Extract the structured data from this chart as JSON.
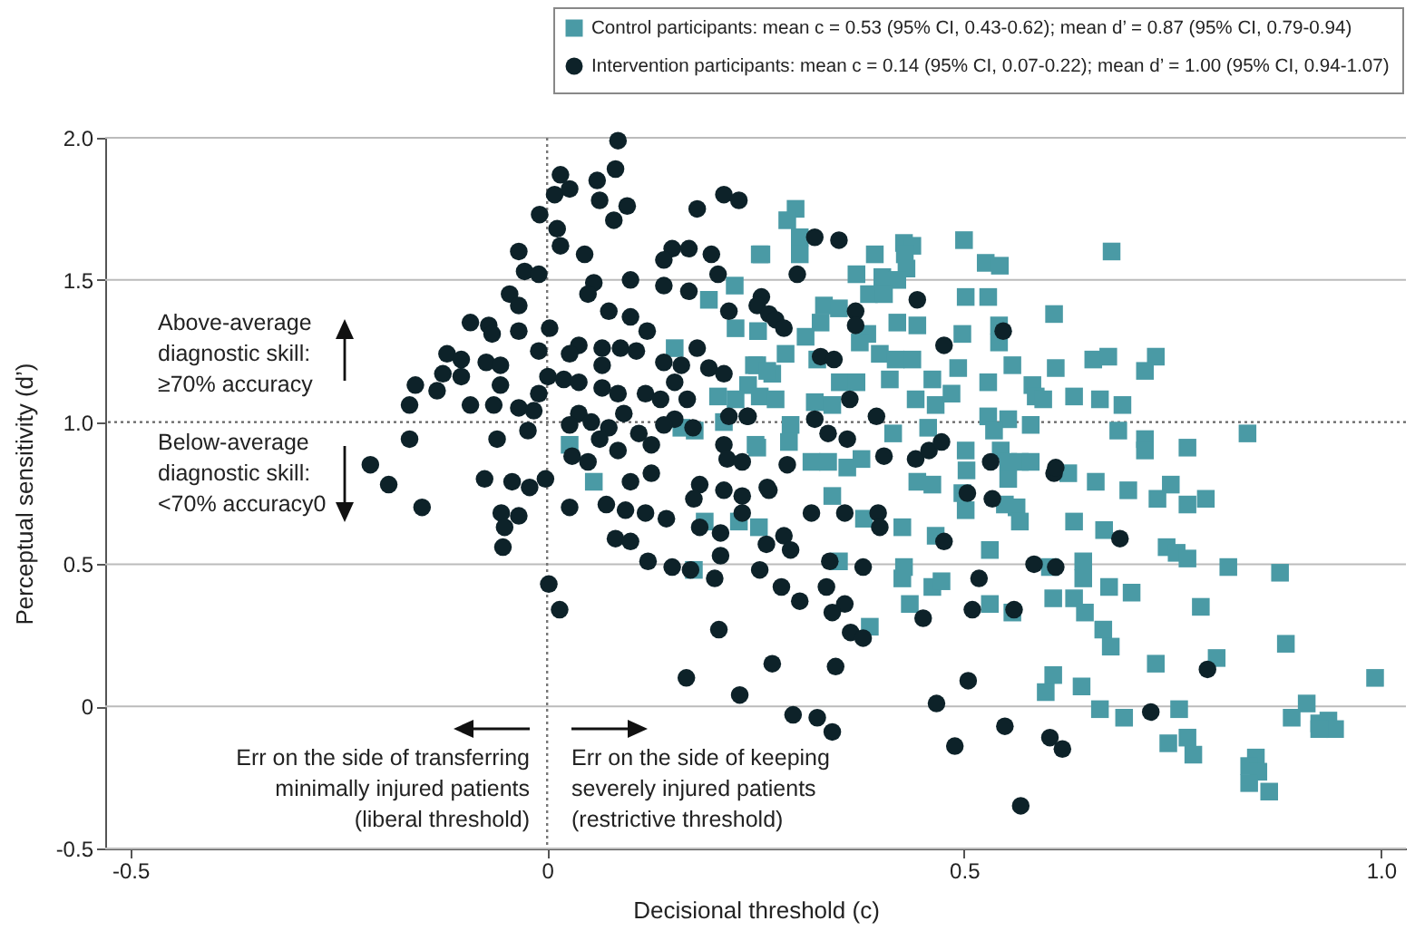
{
  "chart_data": {
    "type": "scatter",
    "xlabel": "Decisional threshold (c)",
    "ylabel": "Perceptual sensitivity (d’)",
    "xlim": [
      -0.53,
      1.03
    ],
    "ylim": [
      -0.5,
      2.0
    ],
    "xticks": [
      -0.5,
      0,
      0.5,
      {
        "value": 1,
        "label": "1.0"
      }
    ],
    "yticks": [
      -0.5,
      0,
      0.5,
      {
        "value": 1,
        "label": "1.0"
      },
      1.5,
      {
        "value": 2,
        "label": "2.0"
      }
    ],
    "grid": "y",
    "legend": "top right",
    "ref_lines": [
      {
        "axis": "x",
        "value": 0,
        "color": "#777777",
        "line_style": "dotted"
      },
      {
        "axis": "y",
        "value": 1,
        "color": "#666666",
        "line_style": "dotted"
      }
    ],
    "annotations": [
      "Above-average diagnostic skill: ≥70% accuracy",
      "Below-average diagnostic skill: <70% accuracy0",
      "Err on the side of transferring minimally injured patients (liberal threshold)",
      "Err on the side of keeping severely injured patients (restrictive threshold)"
    ],
    "series": [
      {
        "name": "Control participants: mean c = 0.53 (95% CI, 0.43-0.62); mean d’ = 0.87 (95% CI, 0.79-0.94)",
        "color": "#4a9aa5",
        "marker": "square",
        "x": [
          0.255,
          0.225,
          0.194,
          0.226,
          0.253,
          0.153,
          0.252,
          0.27,
          0.241,
          0.205,
          0.226,
          0.255,
          0.212,
          0.161,
          0.177,
          0.027,
          0.25,
          0.056,
          0.189,
          0.23,
          0.254,
          0.176,
          0.298,
          0.288,
          0.303,
          0.257,
          0.303,
          0.428,
          0.438,
          0.429,
          0.431,
          0.393,
          0.5,
          0.526,
          0.543,
          0.677,
          0.371,
          0.402,
          0.42,
          0.386,
          0.404,
          0.502,
          0.529,
          0.608,
          0.332,
          0.35,
          0.328,
          0.42,
          0.444,
          0.542,
          0.542,
          0.498,
          0.384,
          0.375,
          0.31,
          0.286,
          0.399,
          0.418,
          0.438,
          0.324,
          0.493,
          0.558,
          0.61,
          0.655,
          0.673,
          0.73,
          0.717,
          0.248,
          0.264,
          0.411,
          0.462,
          0.529,
          0.351,
          0.371,
          0.274,
          0.321,
          0.342,
          0.442,
          0.466,
          0.485,
          0.582,
          0.586,
          0.595,
          0.632,
          0.663,
          0.69,
          0.529,
          0.553,
          0.58,
          0.536,
          0.457,
          0.415,
          0.292,
          0.29,
          0.252,
          0.685,
          0.717,
          0.717,
          0.768,
          0.84,
          0.502,
          0.544,
          0.553,
          0.567,
          0.58,
          0.503,
          0.317,
          0.337,
          0.36,
          0.377,
          0.625,
          0.658,
          0.553,
          0.697,
          0.748,
          0.342,
          0.444,
          0.462,
          0.498,
          0.502,
          0.549,
          0.563,
          0.567,
          0.632,
          0.732,
          0.768,
          0.79,
          0.38,
          0.426,
          0.466,
          0.531,
          0.668,
          0.743,
          0.755,
          0.768,
          0.817,
          0.879,
          0.35,
          0.428,
          0.426,
          0.462,
          0.473,
          0.435,
          0.531,
          0.558,
          0.607,
          0.632,
          0.645,
          0.643,
          0.643,
          0.674,
          0.701,
          0.784,
          0.603,
          0.667,
          0.676,
          0.387,
          0.73,
          0.803,
          0.886,
          0.993,
          0.607,
          0.598,
          0.641,
          0.663,
          0.692,
          0.758,
          0.768,
          0.745,
          0.775,
          0.911,
          0.893,
          0.926,
          0.937,
          0.945,
          0.926,
          0.85,
          0.842,
          0.853,
          0.842,
          0.866
        ],
        "values": [
          1.59,
          1.48,
          1.43,
          1.33,
          1.32,
          1.26,
          1.2,
          1.17,
          1.13,
          1.09,
          1.08,
          1.09,
          1.0,
          0.98,
          0.97,
          0.92,
          0.92,
          0.79,
          0.65,
          0.65,
          0.63,
          0.48,
          1.75,
          1.71,
          1.65,
          1.59,
          1.59,
          1.63,
          1.62,
          1.59,
          1.54,
          1.59,
          1.64,
          1.56,
          1.55,
          1.6,
          1.52,
          1.51,
          1.5,
          1.45,
          1.45,
          1.44,
          1.44,
          1.38,
          1.41,
          1.4,
          1.35,
          1.35,
          1.34,
          1.34,
          1.28,
          1.31,
          1.31,
          1.28,
          1.3,
          1.24,
          1.24,
          1.22,
          1.22,
          1.22,
          1.19,
          1.2,
          1.19,
          1.22,
          1.23,
          1.23,
          1.18,
          1.2,
          1.18,
          1.15,
          1.15,
          1.14,
          1.14,
          1.14,
          1.08,
          1.07,
          1.06,
          1.08,
          1.06,
          1.1,
          1.13,
          1.09,
          1.08,
          1.09,
          1.08,
          1.06,
          1.02,
          1.01,
          0.99,
          0.97,
          0.98,
          0.96,
          0.99,
          0.93,
          0.91,
          0.97,
          0.94,
          0.9,
          0.91,
          0.96,
          0.9,
          0.9,
          0.86,
          0.86,
          0.86,
          0.83,
          0.86,
          0.86,
          0.84,
          0.87,
          0.82,
          0.79,
          0.8,
          0.76,
          0.78,
          0.74,
          0.79,
          0.78,
          0.75,
          0.69,
          0.71,
          0.7,
          0.65,
          0.65,
          0.73,
          0.71,
          0.73,
          0.66,
          0.63,
          0.6,
          0.55,
          0.62,
          0.56,
          0.54,
          0.52,
          0.49,
          0.47,
          0.51,
          0.49,
          0.45,
          0.42,
          0.44,
          0.36,
          0.36,
          0.33,
          0.38,
          0.38,
          0.33,
          0.51,
          0.45,
          0.42,
          0.4,
          0.35,
          0.49,
          0.27,
          0.21,
          0.28,
          0.15,
          0.17,
          0.22,
          0.1,
          0.11,
          0.05,
          0.07,
          -0.01,
          -0.04,
          -0.01,
          -0.11,
          -0.13,
          -0.17,
          0.01,
          -0.04,
          -0.06,
          -0.05,
          -0.08,
          -0.08,
          -0.18,
          -0.21,
          -0.23,
          -0.27,
          -0.3
        ]
      },
      {
        "name": "Intervention participants: mean c = 0.14 (95% CI, 0.07-0.22); mean d’ = 1.00 (95% CI, 0.94-1.07)",
        "color": "#0d2229",
        "marker": "circle",
        "x": [
          0.085,
          0.082,
          0.016,
          0.027,
          0.06,
          0.063,
          0.009,
          0.096,
          0.08,
          -0.009,
          0.012,
          0.016,
          0.212,
          0.23,
          0.18,
          -0.034,
          0.045,
          0.15,
          0.17,
          0.197,
          0.14,
          -0.027,
          -0.01,
          0.056,
          0.049,
          0.1,
          0.14,
          0.17,
          0.205,
          -0.045,
          -0.034,
          0.074,
          0.1,
          -0.092,
          -0.07,
          -0.066,
          -0.034,
          0.003,
          0.12,
          0.038,
          0.066,
          0.088,
          -0.01,
          -0.12,
          -0.103,
          0.027,
          0.107,
          0.14,
          0.18,
          0.161,
          -0.073,
          -0.056,
          0.066,
          0.194,
          -0.125,
          -0.103,
          0.001,
          0.02,
          0.038,
          -0.158,
          -0.132,
          -0.056,
          0.066,
          0.085,
          0.153,
          0.212,
          -0.01,
          -0.092,
          -0.165,
          -0.064,
          -0.034,
          -0.016,
          0.118,
          0.136,
          0.168,
          0.092,
          0.038,
          0.053,
          0.153,
          0.027,
          -0.023,
          0.074,
          0.11,
          0.063,
          0.125,
          0.14,
          0.175,
          0.218,
          0.24,
          0.212,
          -0.06,
          -0.165,
          0.03,
          0.049,
          0.085,
          0.216,
          0.234,
          -0.212,
          -0.19,
          -0.075,
          -0.042,
          -0.021,
          -0.002,
          0.1,
          0.125,
          0.183,
          -0.15,
          -0.055,
          -0.034,
          -0.051,
          -0.053,
          0.002,
          0.015,
          0.027,
          0.071,
          0.094,
          0.118,
          0.143,
          0.176,
          0.212,
          0.234,
          0.234,
          0.183,
          0.208,
          0.082,
          0.1,
          0.121,
          0.15,
          0.172,
          0.201,
          0.208,
          0.255,
          0.263,
          0.206,
          0.167,
          0.231,
          0.27,
          0.266,
          0.317,
          0.357,
          0.397,
          0.399,
          0.284,
          0.292,
          0.339,
          0.379,
          0.281,
          0.303,
          0.335,
          0.357,
          0.342,
          0.364,
          0.379,
          0.346,
          0.295,
          0.324,
          0.342,
          0.451,
          0.476,
          0.504,
          0.534,
          0.518,
          0.51,
          0.56,
          0.505,
          0.467,
          0.489,
          0.549,
          0.603,
          0.618,
          0.568,
          0.584,
          0.61,
          0.687,
          0.724,
          0.792,
          0.608,
          0.321,
          0.35,
          0.3,
          0.257,
          0.252,
          0.266,
          0.274,
          0.284,
          0.218,
          0.444,
          0.37,
          0.37,
          0.328,
          0.344,
          0.476,
          0.547,
          0.363,
          0.395,
          0.321,
          0.337,
          0.36,
          0.241,
          0.288,
          0.404,
          0.442,
          0.458,
          0.473,
          0.532,
          0.61,
          0.264
        ],
        "values": [
          1.99,
          1.89,
          1.87,
          1.82,
          1.85,
          1.78,
          1.8,
          1.76,
          1.71,
          1.73,
          1.68,
          1.62,
          1.8,
          1.78,
          1.75,
          1.6,
          1.59,
          1.61,
          1.61,
          1.59,
          1.57,
          1.53,
          1.52,
          1.49,
          1.45,
          1.5,
          1.48,
          1.46,
          1.52,
          1.45,
          1.41,
          1.39,
          1.37,
          1.35,
          1.34,
          1.31,
          1.32,
          1.33,
          1.32,
          1.27,
          1.26,
          1.26,
          1.25,
          1.24,
          1.22,
          1.24,
          1.25,
          1.21,
          1.26,
          1.2,
          1.21,
          1.2,
          1.2,
          1.19,
          1.17,
          1.16,
          1.16,
          1.15,
          1.14,
          1.13,
          1.11,
          1.13,
          1.12,
          1.1,
          1.14,
          1.17,
          1.1,
          1.06,
          1.06,
          1.06,
          1.05,
          1.04,
          1.1,
          1.08,
          1.08,
          1.03,
          1.03,
          1.0,
          1.01,
          0.99,
          0.97,
          0.98,
          0.96,
          0.94,
          0.92,
          0.99,
          0.98,
          1.02,
          1.02,
          0.92,
          0.94,
          0.94,
          0.88,
          0.86,
          0.9,
          0.87,
          0.86,
          0.85,
          0.78,
          0.8,
          0.79,
          0.77,
          0.8,
          0.79,
          0.82,
          0.78,
          0.7,
          0.68,
          0.67,
          0.63,
          0.56,
          0.43,
          0.34,
          0.7,
          0.71,
          0.69,
          0.68,
          0.66,
          0.73,
          0.76,
          0.74,
          0.68,
          0.63,
          0.61,
          0.59,
          0.58,
          0.51,
          0.49,
          0.48,
          0.45,
          0.53,
          0.48,
          0.57,
          0.27,
          0.1,
          0.04,
          0.15,
          0.76,
          0.68,
          0.68,
          0.68,
          0.63,
          0.6,
          0.55,
          0.51,
          0.49,
          0.42,
          0.37,
          0.42,
          0.36,
          0.33,
          0.26,
          0.24,
          0.14,
          -0.03,
          -0.04,
          -0.09,
          0.31,
          0.58,
          0.75,
          0.73,
          0.45,
          0.34,
          0.34,
          0.09,
          0.01,
          -0.14,
          -0.07,
          -0.11,
          -0.15,
          -0.35,
          0.5,
          0.49,
          0.59,
          -0.02,
          0.13,
          0.82,
          1.65,
          1.64,
          1.52,
          1.44,
          1.41,
          1.38,
          1.36,
          1.33,
          1.39,
          1.43,
          1.39,
          1.34,
          1.23,
          1.22,
          1.27,
          1.32,
          1.08,
          1.02,
          1.01,
          0.96,
          0.94,
          1.02,
          0.85,
          0.88,
          0.87,
          0.9,
          0.93,
          0.86,
          0.84,
          0.77
        ]
      }
    ]
  }
}
